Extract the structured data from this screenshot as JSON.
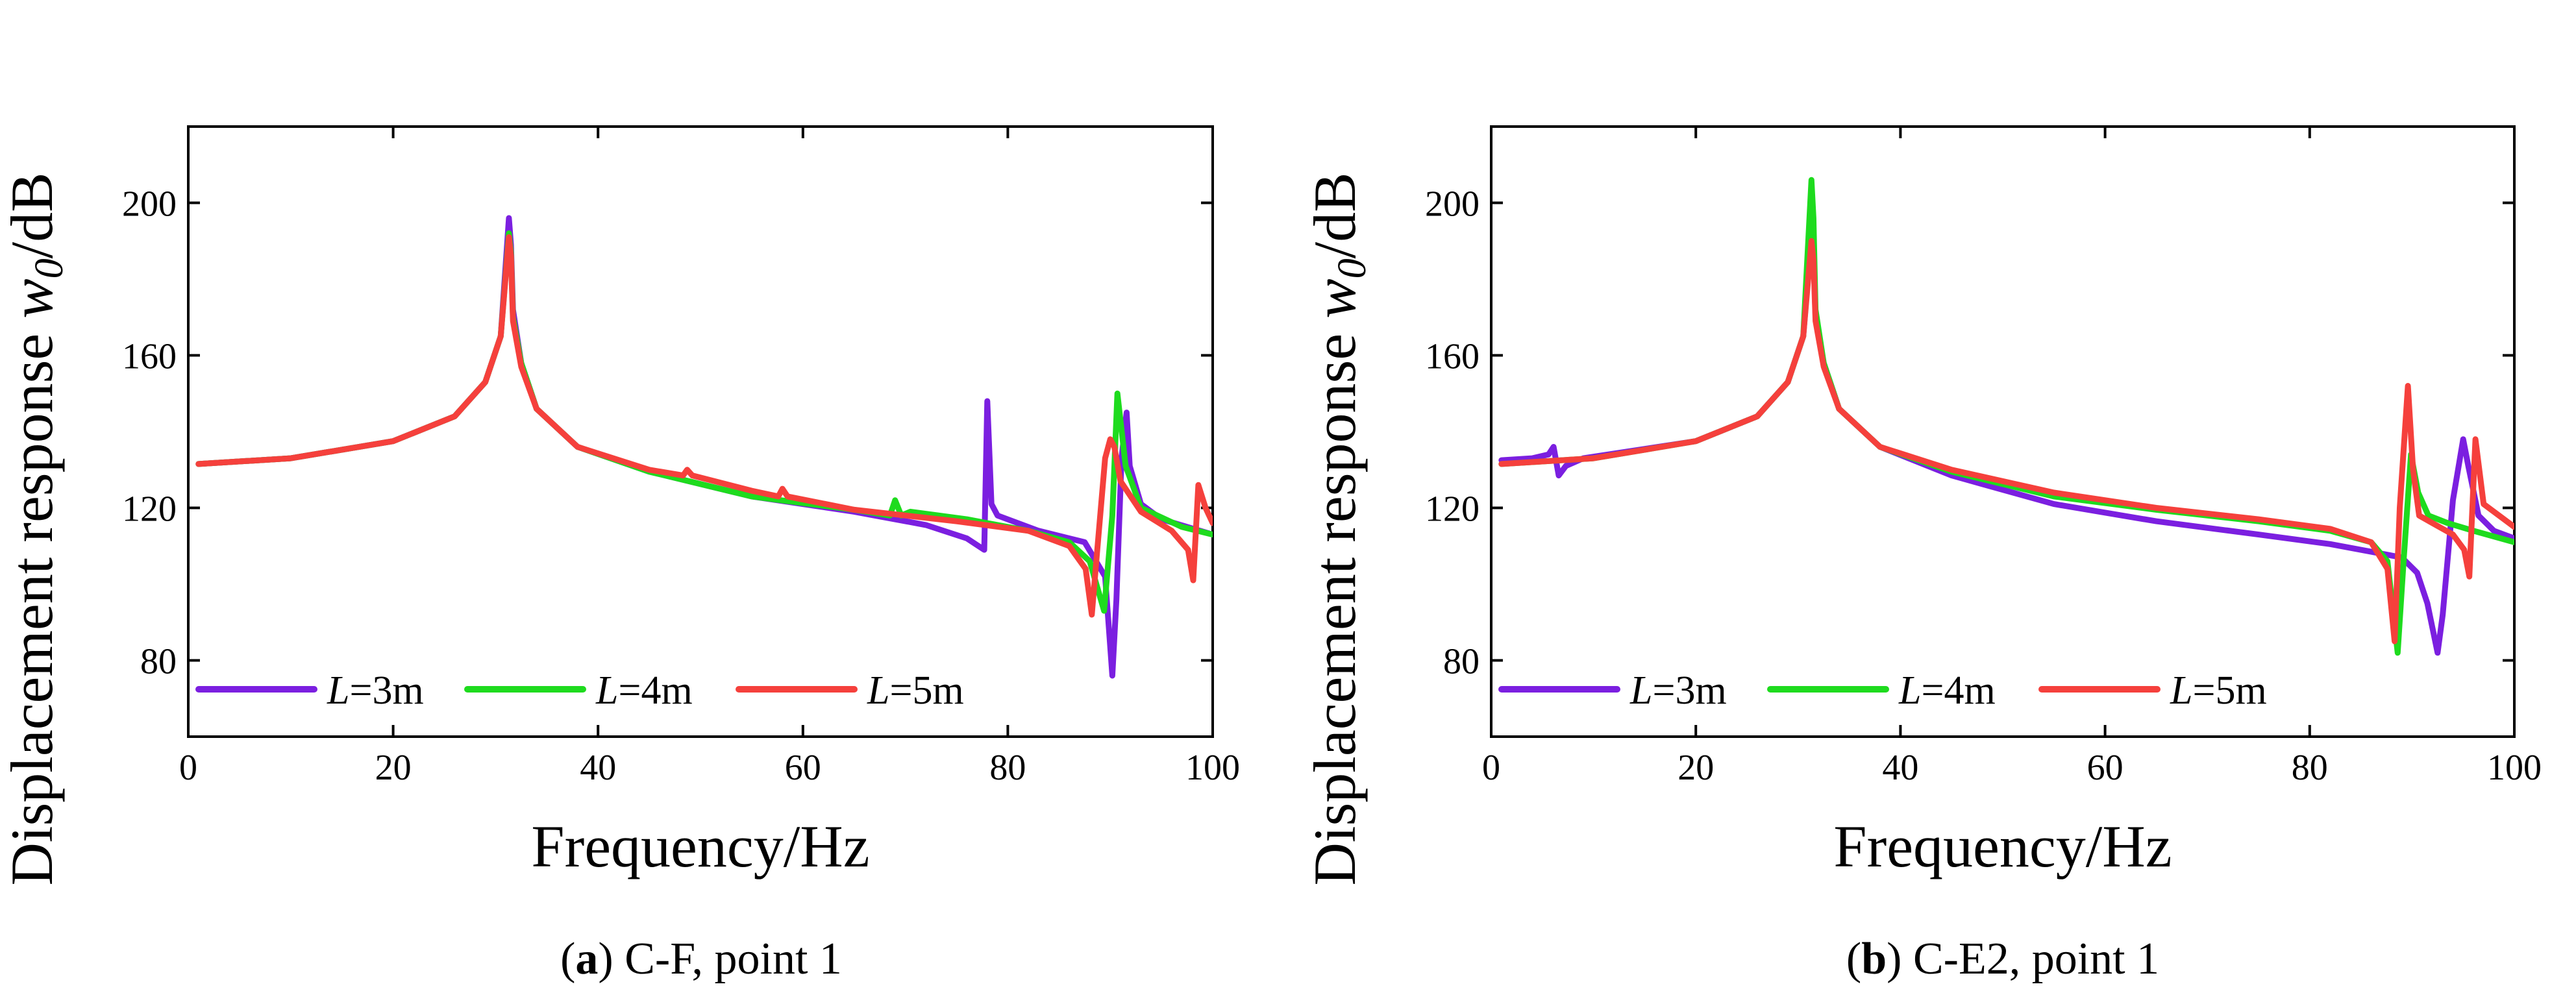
{
  "colors": {
    "L3": "#7b1fe0",
    "L4": "#1edb1e",
    "L5": "#f5403c"
  },
  "chart_data": [
    {
      "type": "line",
      "caption": {
        "letter": "a",
        "text": "C-F, point 1"
      },
      "xlabel": "Frequency/Hz",
      "ylabel": {
        "prefix": "Displacement response ",
        "var": "w",
        "sub": "0",
        "suffix": "/dB"
      },
      "xlim": [
        0,
        100
      ],
      "ylim": [
        60,
        220
      ],
      "xticks": [
        0,
        20,
        40,
        60,
        80,
        100
      ],
      "yticks": [
        80,
        120,
        160,
        200
      ],
      "legend": {
        "placement": "bottom-left",
        "var": "L"
      },
      "series": [
        {
          "name": "=3m",
          "color_key": "L3",
          "x": [
            1,
            10,
            20,
            26,
            29,
            30.5,
            31.3,
            31.5,
            31.7,
            32.5,
            34,
            38,
            45,
            55,
            65,
            72,
            76,
            77.7,
            78,
            78.4,
            79,
            83,
            87.5,
            89.5,
            90.2,
            90.6,
            91.1,
            91.6,
            91.9,
            93,
            95,
            100
          ],
          "y": [
            131.5,
            133,
            137.5,
            144,
            153,
            165,
            196,
            189,
            172,
            158,
            146,
            136,
            129.5,
            123,
            119,
            115.5,
            112,
            109,
            148,
            121,
            118,
            114,
            111,
            102,
            76,
            96,
            133,
            145,
            131,
            121,
            117,
            113
          ]
        },
        {
          "name": "=4m",
          "color_key": "L4",
          "x": [
            1,
            10,
            20,
            26,
            29,
            30.5,
            31.3,
            31.5,
            31.7,
            32.5,
            34,
            38,
            45,
            55,
            65,
            68.5,
            69,
            69.6,
            70.5,
            76,
            82,
            86,
            88,
            89.4,
            90.2,
            90.7,
            91.5,
            93,
            97,
            100
          ],
          "y": [
            131.5,
            133,
            137.5,
            144,
            153,
            165,
            192,
            187,
            170,
            158,
            146,
            136,
            129.5,
            123,
            119.5,
            118,
            122,
            118,
            119,
            117,
            114,
            111,
            106,
            93,
            118,
            150,
            131,
            120,
            115,
            113
          ]
        },
        {
          "name": "=5m",
          "color_key": "L5",
          "x": [
            1,
            10,
            20,
            26,
            29,
            30.5,
            31.3,
            31.5,
            31.7,
            32.5,
            34,
            38,
            45,
            48.3,
            48.7,
            49.2,
            55,
            57.6,
            58,
            58.5,
            65,
            75,
            82,
            86,
            87.6,
            88.2,
            88.7,
            89.5,
            90,
            90.4,
            91,
            93,
            96,
            97.6,
            98.1,
            98.6,
            99.3,
            100
          ],
          "y": [
            131.5,
            133,
            137.5,
            144,
            153,
            165,
            191,
            186,
            169,
            157,
            146,
            136,
            130,
            128.5,
            130,
            128.5,
            124.5,
            123,
            125,
            123,
            119.5,
            116.5,
            114,
            110,
            104,
            92,
            108,
            133,
            138,
            136,
            127,
            119,
            114,
            109,
            101,
            126,
            120,
            116
          ]
        }
      ]
    },
    {
      "type": "line",
      "caption": {
        "letter": "b",
        "text": "C-E2, point 1"
      },
      "xlabel": "Frequency/Hz",
      "ylabel": {
        "prefix": "Displacement response ",
        "var": "w",
        "sub": "0",
        "suffix": "/dB"
      },
      "xlim": [
        0,
        100
      ],
      "ylim": [
        60,
        220
      ],
      "xticks": [
        0,
        20,
        40,
        60,
        80,
        100
      ],
      "yticks": [
        80,
        120,
        160,
        200
      ],
      "legend": {
        "placement": "bottom-left",
        "var": "L"
      },
      "series": [
        {
          "name": "=3m",
          "color_key": "L3",
          "x": [
            1,
            4,
            5.6,
            6.1,
            6.6,
            7.3,
            9,
            20,
            26,
            29,
            30.5,
            31.3,
            31.5,
            31.7,
            32.5,
            34,
            38,
            45,
            55,
            65,
            75,
            82,
            86,
            89,
            90.5,
            91.5,
            92.5,
            93,
            94,
            95,
            95.5,
            96.5,
            98,
            100
          ],
          "y": [
            132.5,
            133,
            134,
            136,
            128.5,
            131,
            133,
            137.5,
            144,
            153,
            165,
            192,
            187,
            170,
            158,
            146,
            136,
            128.5,
            121,
            116.5,
            113,
            110.5,
            108.5,
            107,
            103,
            95,
            82,
            92,
            122,
            138,
            131,
            118,
            114,
            112
          ]
        },
        {
          "name": "=4m",
          "color_key": "L4",
          "x": [
            1,
            10,
            20,
            26,
            29,
            30.5,
            31.3,
            31.5,
            31.7,
            32.5,
            34,
            38,
            45,
            55,
            65,
            75,
            82,
            86,
            87.6,
            88.6,
            89.2,
            89.9,
            90.6,
            91.6,
            93.5,
            96,
            100
          ],
          "y": [
            131.5,
            133,
            137.5,
            144,
            153,
            165,
            206,
            196,
            172,
            158,
            146,
            136,
            129.5,
            123,
            119.5,
            116.5,
            114,
            111,
            106,
            82,
            107,
            134,
            124,
            118,
            116,
            114,
            111
          ]
        },
        {
          "name": "=5m",
          "color_key": "L5",
          "x": [
            1,
            10,
            20,
            26,
            29,
            30.5,
            31.3,
            31.5,
            31.7,
            32.5,
            34,
            38,
            45,
            55,
            65,
            75,
            82,
            86,
            87.6,
            88.3,
            88.8,
            89.6,
            90.1,
            90.7,
            92,
            94,
            95.1,
            95.6,
            96.2,
            97,
            100
          ],
          "y": [
            131.5,
            133,
            137.5,
            144,
            153,
            165,
            190,
            185,
            169,
            157,
            146,
            136,
            130,
            124,
            120,
            117,
            114.5,
            111,
            104,
            85,
            120,
            152,
            130,
            118,
            116,
            113,
            109,
            102,
            138,
            121,
            115
          ]
        }
      ]
    }
  ]
}
